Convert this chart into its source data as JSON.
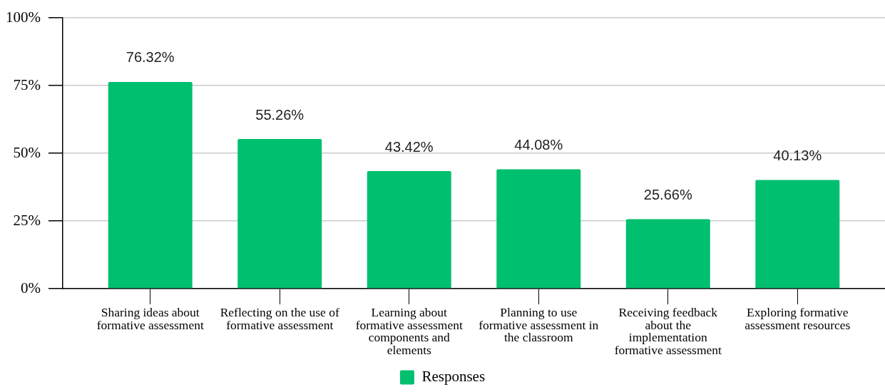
{
  "chart_data": {
    "type": "bar",
    "categories": [
      "Sharing ideas about formative assessment",
      "Reflecting on the use of formative assessment",
      "Learning about formative assessment components and elements",
      "Planning to use formative assessment in the classroom",
      "Receiving feedback about the implementation formative assessment",
      "Exploring formative assessment resources"
    ],
    "series": [
      {
        "name": "Responses",
        "color": "#00bf6f",
        "values": [
          76.32,
          55.26,
          43.42,
          44.08,
          25.66,
          40.13
        ],
        "value_labels": [
          "76.32%",
          "55.26%",
          "43.42%",
          "44.08%",
          "25.66%",
          "40.13%"
        ]
      }
    ],
    "ylim": [
      0,
      100
    ],
    "yticks": [
      {
        "value": 0,
        "label": "0%"
      },
      {
        "value": 25,
        "label": "25%"
      },
      {
        "value": 50,
        "label": "50%"
      },
      {
        "value": 75,
        "label": "75%"
      },
      {
        "value": 100,
        "label": "100%"
      }
    ],
    "grid": "y",
    "legend": "bottom"
  }
}
